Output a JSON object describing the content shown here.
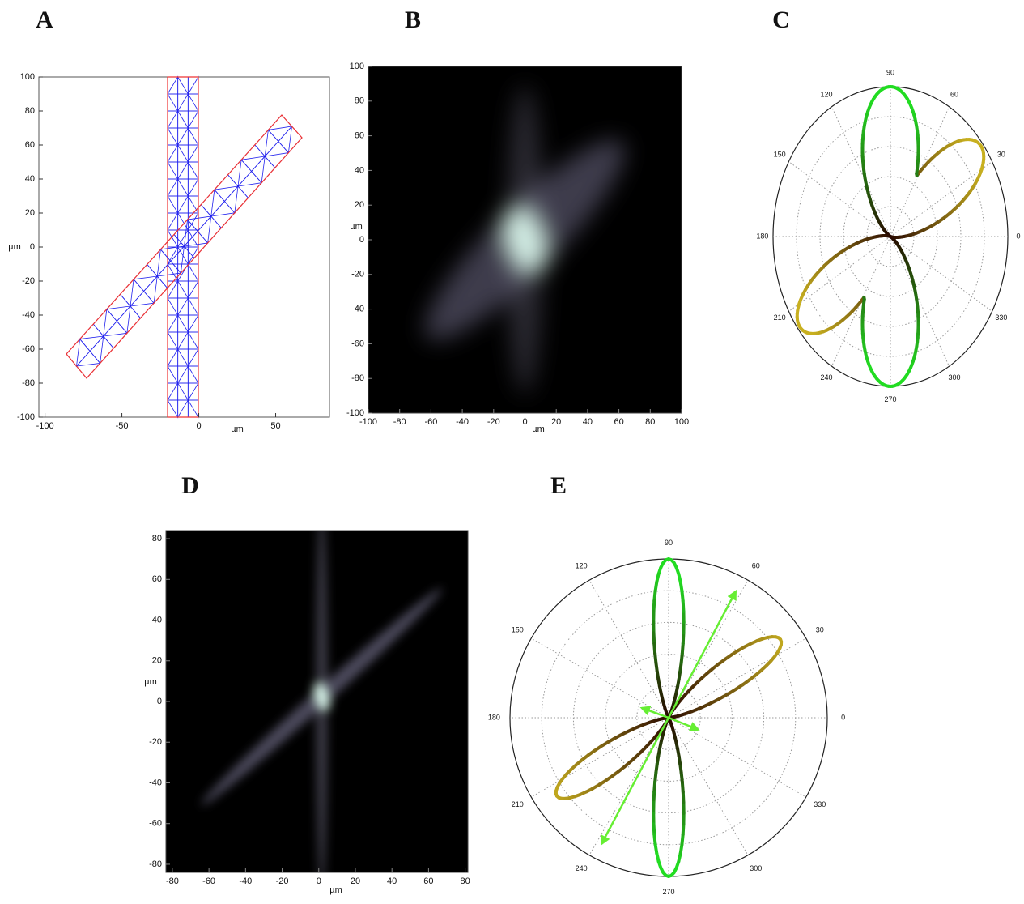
{
  "chart_data": [
    {
      "type": "mesh",
      "title": "A",
      "xlabel": "µm",
      "ylabel": "µm",
      "xlim": [
        -104,
        85
      ],
      "ylim": [
        -100,
        100
      ],
      "xticks": [
        -100,
        -50,
        0,
        50
      ],
      "yticks": [
        -100,
        -80,
        -60,
        -40,
        -20,
        0,
        20,
        40,
        60,
        80,
        100
      ]
    },
    {
      "type": "heatmap",
      "title": "B",
      "xlabel": "µm",
      "ylabel": "µm",
      "xlim": [
        -100,
        100
      ],
      "ylim": [
        -100,
        100
      ],
      "xticks": [
        -100,
        -80,
        -60,
        -40,
        -20,
        0,
        20,
        40,
        60,
        80,
        100
      ],
      "yticks": [
        -100,
        -80,
        -60,
        -40,
        -20,
        0,
        20,
        40,
        60,
        80,
        100
      ]
    },
    {
      "type": "polar",
      "title": "C",
      "thetaticks": [
        0,
        30,
        60,
        90,
        120,
        150,
        180,
        210,
        240,
        270,
        300,
        330
      ]
    },
    {
      "type": "heatmap",
      "title": "D",
      "xlabel": "µm",
      "ylabel": "µm",
      "xlim": [
        -83.5,
        81.5
      ],
      "ylim": [
        -84,
        84
      ],
      "xticks": [
        -80,
        -60,
        -40,
        -20,
        0,
        20,
        40,
        60,
        80
      ],
      "yticks": [
        -80,
        -60,
        -40,
        -20,
        0,
        20,
        40,
        60,
        80
      ]
    },
    {
      "type": "polar",
      "title": "E",
      "thetaticks": [
        0,
        30,
        60,
        90,
        120,
        150,
        180,
        210,
        240,
        270,
        300,
        330
      ]
    }
  ]
}
